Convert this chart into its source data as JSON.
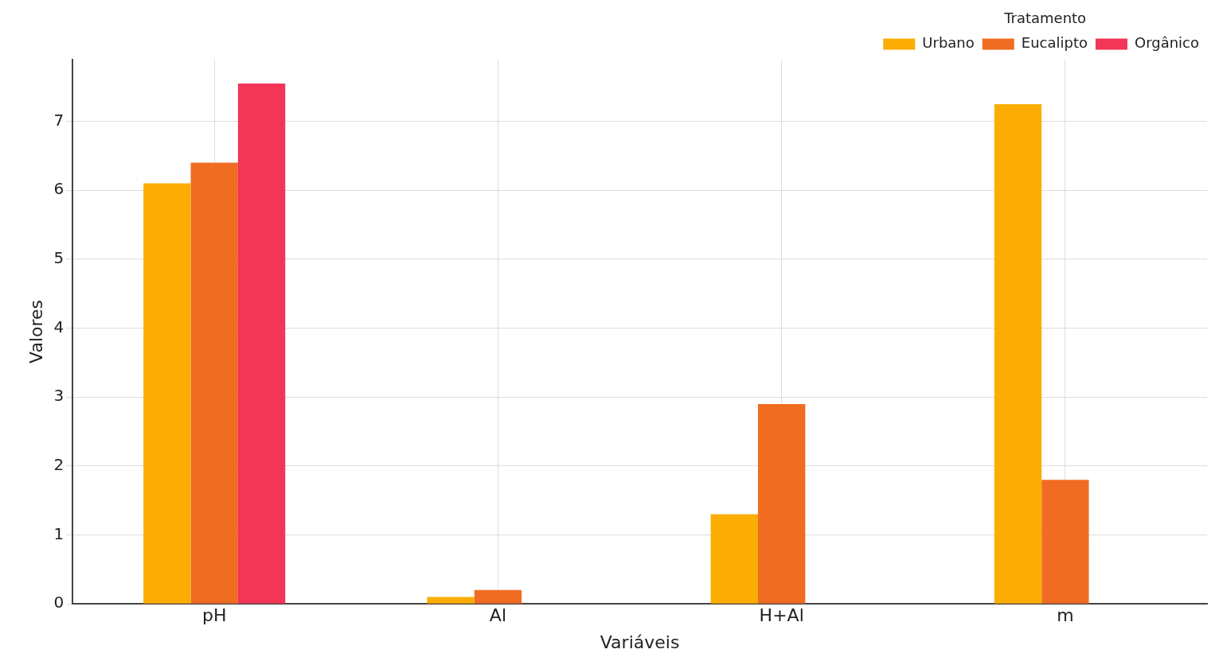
{
  "chart_data": {
    "type": "bar",
    "xlabel": "Variáveis",
    "ylabel": "Valores",
    "legend_title": "Tratamento",
    "categories": [
      "pH",
      "Al",
      "H+Al",
      "m"
    ],
    "series": [
      {
        "name": "Urbano",
        "color": "#fbad04",
        "values": [
          6.1,
          0.1,
          1.3,
          7.25
        ]
      },
      {
        "name": "Eucalipto",
        "color": "#f06c22",
        "values": [
          6.4,
          0.2,
          2.9,
          1.8
        ]
      },
      {
        "name": "Orgânico",
        "color": "#f33558",
        "values": [
          7.55,
          null,
          null,
          null
        ]
      }
    ],
    "ylim": [
      0,
      7.9
    ],
    "yticks": [
      0,
      1,
      2,
      3,
      4,
      5,
      6,
      7
    ],
    "grid": true,
    "legend": "top right"
  }
}
